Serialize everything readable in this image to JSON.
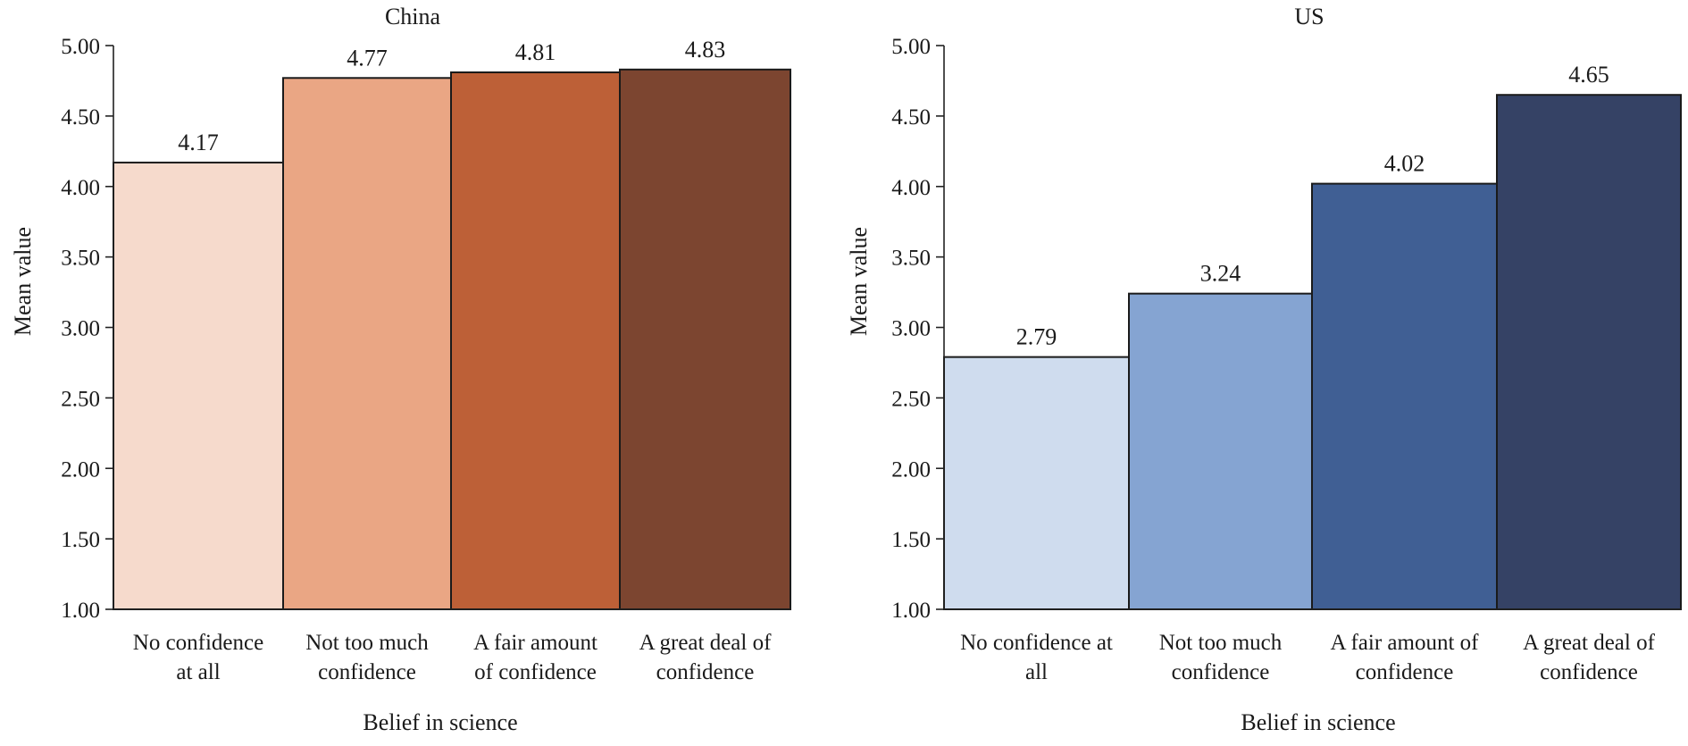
{
  "chart_data": [
    {
      "type": "bar",
      "title": "China",
      "xlabel": "Belief in science",
      "ylabel": "Mean value",
      "ylim": [
        1.0,
        5.0
      ],
      "yticks": [
        "1.00",
        "1.50",
        "2.00",
        "2.50",
        "3.00",
        "3.50",
        "4.00",
        "4.50",
        "5.00"
      ],
      "categories": [
        [
          "No confidence",
          "at all"
        ],
        [
          "Not too much",
          "confidence"
        ],
        [
          "A fair amount",
          "of confidence"
        ],
        [
          "A great deal of",
          "confidence"
        ]
      ],
      "values": [
        4.17,
        4.77,
        4.81,
        4.83
      ],
      "value_labels": [
        "4.17",
        "4.77",
        "4.81",
        "4.83"
      ],
      "colors": [
        "#F6DACC",
        "#EAA684",
        "#BD6037",
        "#7C4530"
      ],
      "grid": false,
      "legend": "none"
    },
    {
      "type": "bar",
      "title": "US",
      "xlabel": "Belief in science",
      "ylabel": "Mean value",
      "ylim": [
        1.0,
        5.0
      ],
      "yticks": [
        "1.00",
        "1.50",
        "2.00",
        "2.50",
        "3.00",
        "3.50",
        "4.00",
        "4.50",
        "5.00"
      ],
      "categories": [
        [
          "No confidence at",
          "all"
        ],
        [
          "Not too much",
          "confidence"
        ],
        [
          "A fair amount of",
          "confidence"
        ],
        [
          "A great deal of",
          "confidence"
        ]
      ],
      "values": [
        2.79,
        3.24,
        4.02,
        4.65
      ],
      "value_labels": [
        "2.79",
        "3.24",
        "4.02",
        "4.65"
      ],
      "colors": [
        "#CFDCEE",
        "#85A4D2",
        "#405F94",
        "#354265"
      ],
      "grid": false,
      "legend": "none"
    }
  ]
}
